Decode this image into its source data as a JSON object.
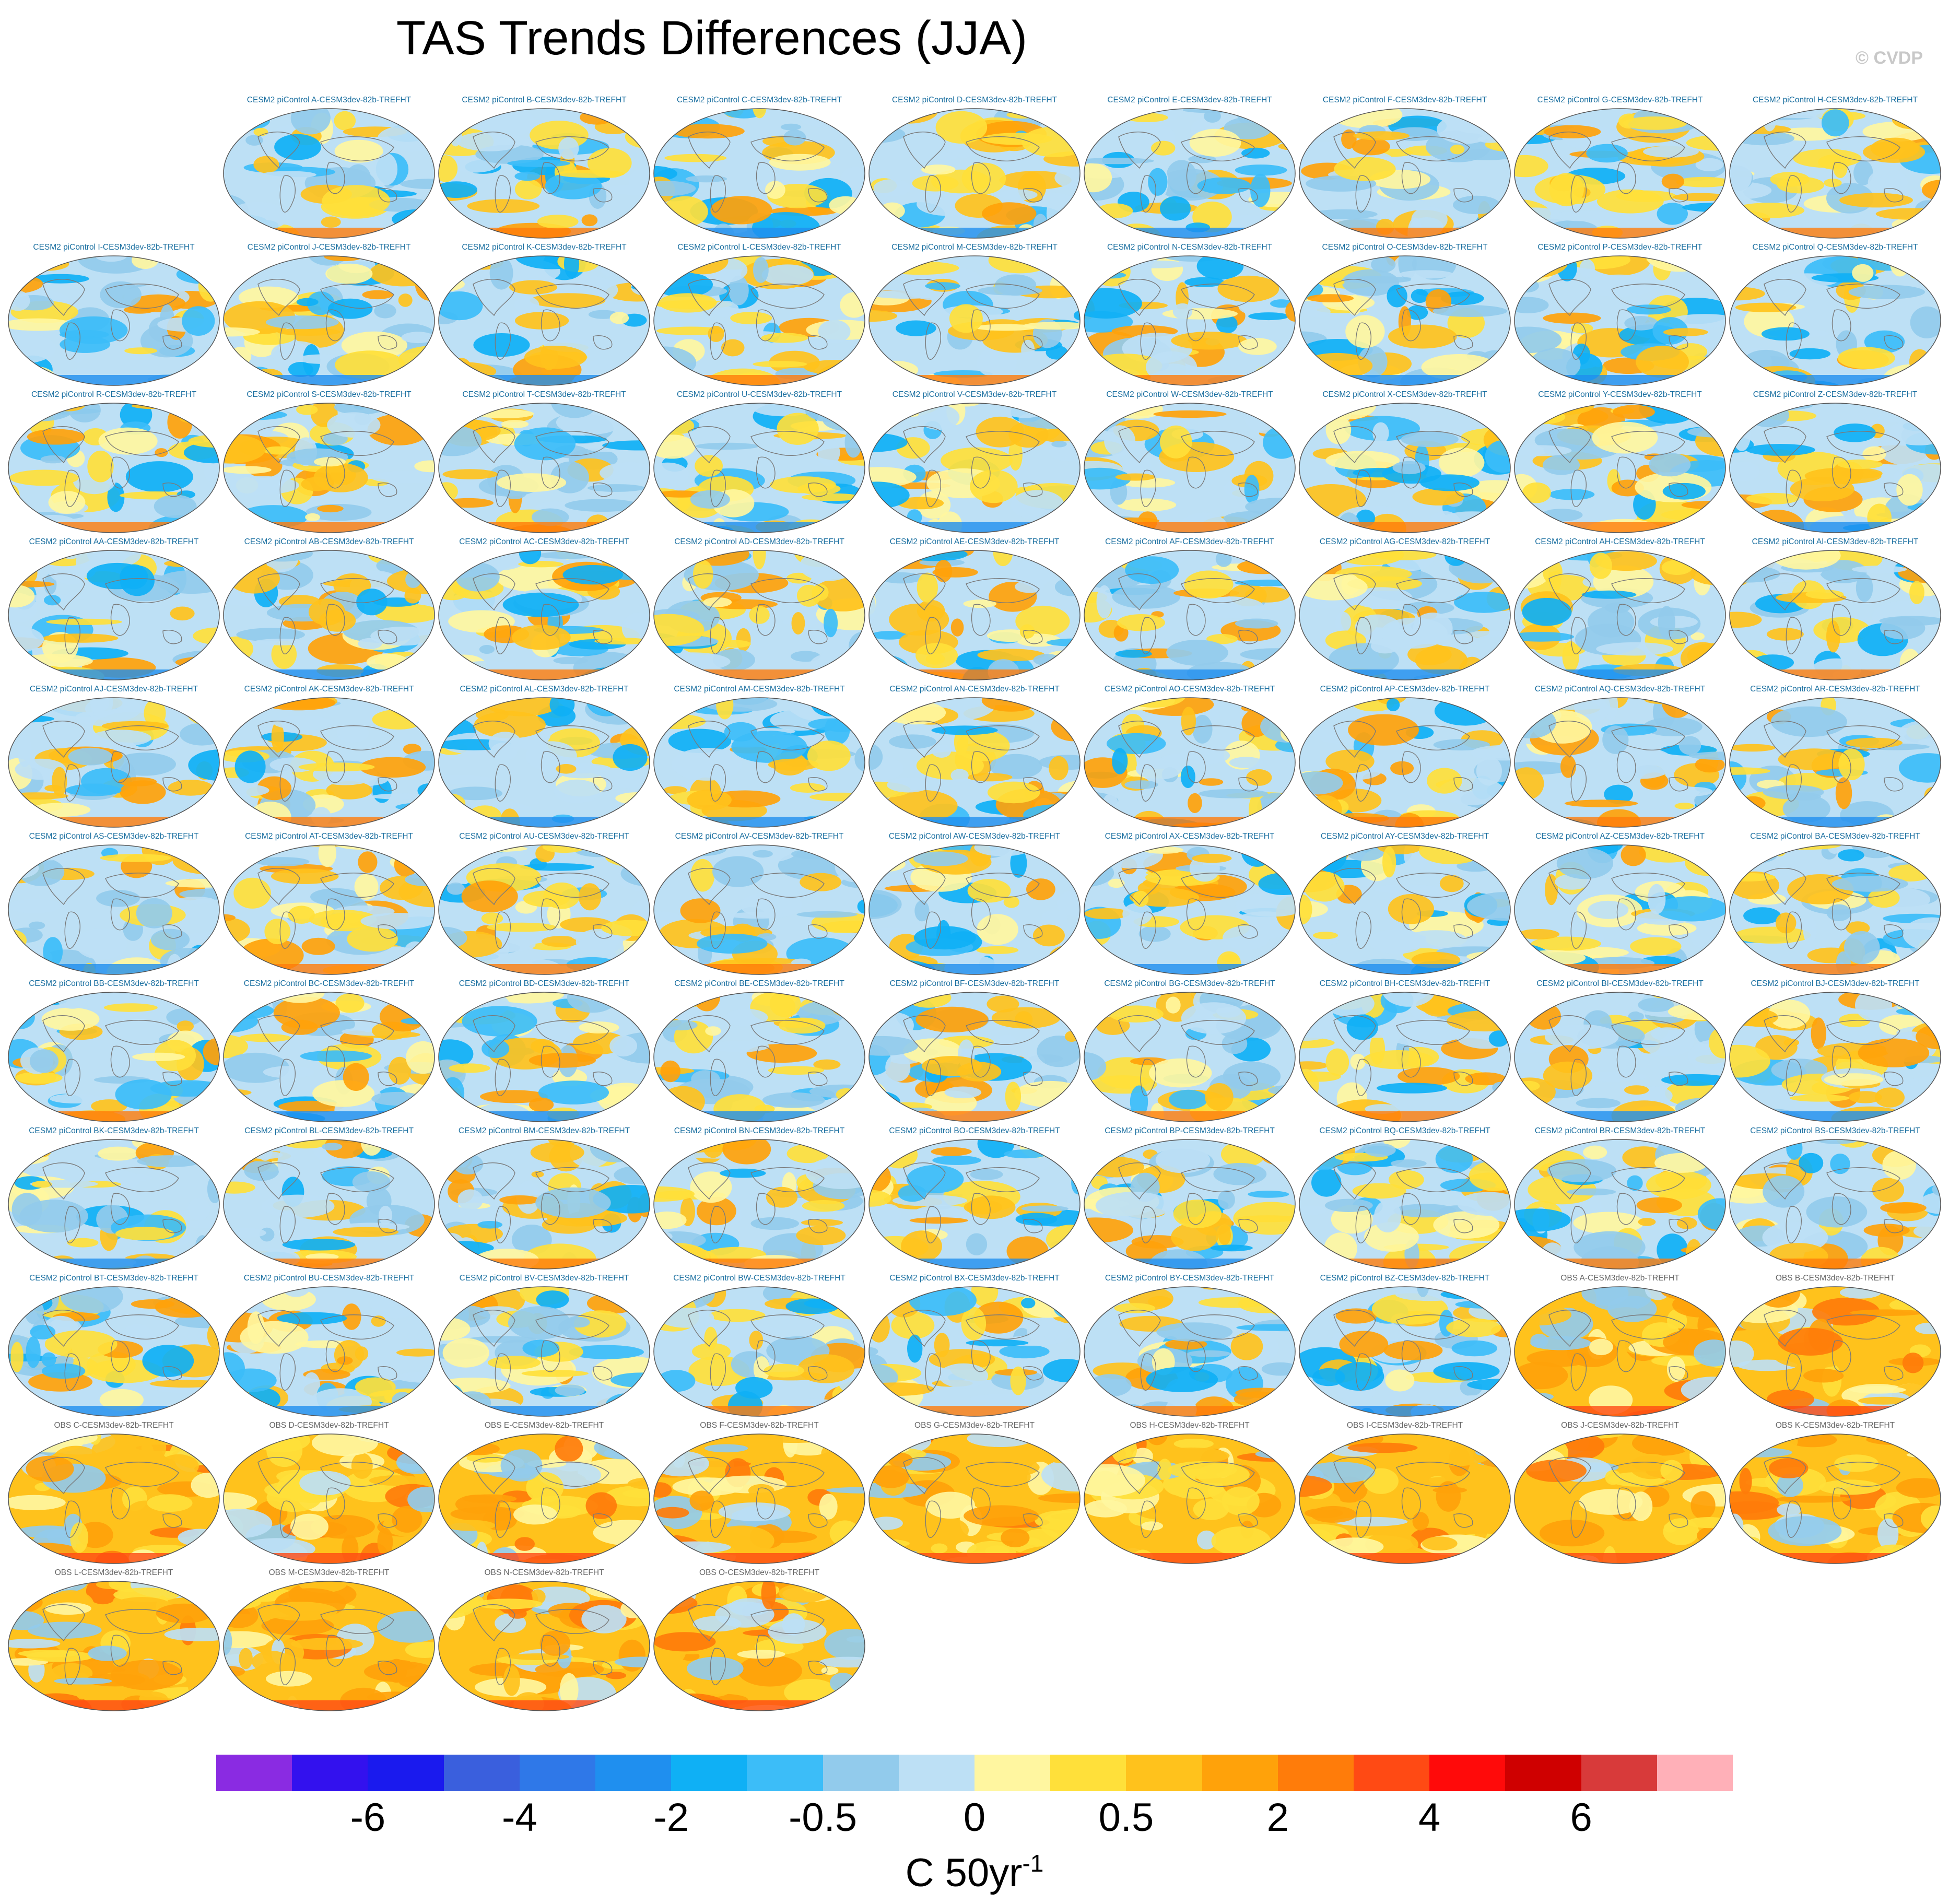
{
  "title": "TAS Trends Differences (JJA)",
  "watermark": "© CVDP",
  "panel_prefix_model": "CESM2 piControl ",
  "panel_prefix_obs": "OBS ",
  "panel_suffix": "-CESM3dev-82b-TREFHT",
  "chart_data": {
    "type": "heatmap",
    "description_kind": "grid of global trend-difference maps",
    "title": "TAS Trends Differences (JJA)",
    "panels": [
      {
        "source": "CESM2 piControl",
        "member": "A",
        "label": "CESM2 piControl A-CESM3dev-82b-TREFHT"
      },
      {
        "source": "CESM2 piControl",
        "member": "B",
        "label": "CESM2 piControl B-CESM3dev-82b-TREFHT"
      },
      {
        "source": "CESM2 piControl",
        "member": "C",
        "label": "CESM2 piControl C-CESM3dev-82b-TREFHT"
      },
      {
        "source": "CESM2 piControl",
        "member": "D",
        "label": "CESM2 piControl D-CESM3dev-82b-TREFHT"
      },
      {
        "source": "CESM2 piControl",
        "member": "E",
        "label": "CESM2 piControl E-CESM3dev-82b-TREFHT"
      },
      {
        "source": "CESM2 piControl",
        "member": "F",
        "label": "CESM2 piControl F-CESM3dev-82b-TREFHT"
      },
      {
        "source": "CESM2 piControl",
        "member": "G",
        "label": "CESM2 piControl G-CESM3dev-82b-TREFHT"
      },
      {
        "source": "CESM2 piControl",
        "member": "H",
        "label": "CESM2 piControl H-CESM3dev-82b-TREFHT"
      },
      {
        "source": "CESM2 piControl",
        "member": "I",
        "label": "CESM2 piControl I-CESM3dev-82b-TREFHT"
      },
      {
        "source": "CESM2 piControl",
        "member": "J",
        "label": "CESM2 piControl J-CESM3dev-82b-TREFHT"
      },
      {
        "source": "CESM2 piControl",
        "member": "K",
        "label": "CESM2 piControl K-CESM3dev-82b-TREFHT"
      },
      {
        "source": "CESM2 piControl",
        "member": "L",
        "label": "CESM2 piControl L-CESM3dev-82b-TREFHT"
      },
      {
        "source": "CESM2 piControl",
        "member": "M",
        "label": "CESM2 piControl M-CESM3dev-82b-TREFHT"
      },
      {
        "source": "CESM2 piControl",
        "member": "N",
        "label": "CESM2 piControl N-CESM3dev-82b-TREFHT"
      },
      {
        "source": "CESM2 piControl",
        "member": "O",
        "label": "CESM2 piControl O-CESM3dev-82b-TREFHT"
      },
      {
        "source": "CESM2 piControl",
        "member": "P",
        "label": "CESM2 piControl P-CESM3dev-82b-TREFHT"
      },
      {
        "source": "CESM2 piControl",
        "member": "Q",
        "label": "CESM2 piControl Q-CESM3dev-82b-TREFHT"
      },
      {
        "source": "CESM2 piControl",
        "member": "R",
        "label": "CESM2 piControl R-CESM3dev-82b-TREFHT"
      },
      {
        "source": "CESM2 piControl",
        "member": "S",
        "label": "CESM2 piControl S-CESM3dev-82b-TREFHT"
      },
      {
        "source": "CESM2 piControl",
        "member": "T",
        "label": "CESM2 piControl T-CESM3dev-82b-TREFHT"
      },
      {
        "source": "CESM2 piControl",
        "member": "U",
        "label": "CESM2 piControl U-CESM3dev-82b-TREFHT"
      },
      {
        "source": "CESM2 piControl",
        "member": "V",
        "label": "CESM2 piControl V-CESM3dev-82b-TREFHT"
      },
      {
        "source": "CESM2 piControl",
        "member": "W",
        "label": "CESM2 piControl W-CESM3dev-82b-TREFHT"
      },
      {
        "source": "CESM2 piControl",
        "member": "X",
        "label": "CESM2 piControl X-CESM3dev-82b-TREFHT"
      },
      {
        "source": "CESM2 piControl",
        "member": "Y",
        "label": "CESM2 piControl Y-CESM3dev-82b-TREFHT"
      },
      {
        "source": "CESM2 piControl",
        "member": "Z",
        "label": "CESM2 piControl Z-CESM3dev-82b-TREFHT"
      },
      {
        "source": "CESM2 piControl",
        "member": "AA",
        "label": "CESM2 piControl AA-CESM3dev-82b-TREFHT"
      },
      {
        "source": "CESM2 piControl",
        "member": "AB",
        "label": "CESM2 piControl AB-CESM3dev-82b-TREFHT"
      },
      {
        "source": "CESM2 piControl",
        "member": "AC",
        "label": "CESM2 piControl AC-CESM3dev-82b-TREFHT"
      },
      {
        "source": "CESM2 piControl",
        "member": "AD",
        "label": "CESM2 piControl AD-CESM3dev-82b-TREFHT"
      },
      {
        "source": "CESM2 piControl",
        "member": "AE",
        "label": "CESM2 piControl AE-CESM3dev-82b-TREFHT"
      },
      {
        "source": "CESM2 piControl",
        "member": "AF",
        "label": "CESM2 piControl AF-CESM3dev-82b-TREFHT"
      },
      {
        "source": "CESM2 piControl",
        "member": "AG",
        "label": "CESM2 piControl AG-CESM3dev-82b-TREFHT"
      },
      {
        "source": "CESM2 piControl",
        "member": "AH",
        "label": "CESM2 piControl AH-CESM3dev-82b-TREFHT"
      },
      {
        "source": "CESM2 piControl",
        "member": "AI",
        "label": "CESM2 piControl AI-CESM3dev-82b-TREFHT"
      },
      {
        "source": "CESM2 piControl",
        "member": "AJ",
        "label": "CESM2 piControl AJ-CESM3dev-82b-TREFHT"
      },
      {
        "source": "CESM2 piControl",
        "member": "AK",
        "label": "CESM2 piControl AK-CESM3dev-82b-TREFHT"
      },
      {
        "source": "CESM2 piControl",
        "member": "AL",
        "label": "CESM2 piControl AL-CESM3dev-82b-TREFHT"
      },
      {
        "source": "CESM2 piControl",
        "member": "AM",
        "label": "CESM2 piControl AM-CESM3dev-82b-TREFHT"
      },
      {
        "source": "CESM2 piControl",
        "member": "AN",
        "label": "CESM2 piControl AN-CESM3dev-82b-TREFHT"
      },
      {
        "source": "CESM2 piControl",
        "member": "AO",
        "label": "CESM2 piControl AO-CESM3dev-82b-TREFHT"
      },
      {
        "source": "CESM2 piControl",
        "member": "AP",
        "label": "CESM2 piControl AP-CESM3dev-82b-TREFHT"
      },
      {
        "source": "CESM2 piControl",
        "member": "AQ",
        "label": "CESM2 piControl AQ-CESM3dev-82b-TREFHT"
      },
      {
        "source": "CESM2 piControl",
        "member": "AR",
        "label": "CESM2 piControl AR-CESM3dev-82b-TREFHT"
      },
      {
        "source": "CESM2 piControl",
        "member": "AS",
        "label": "CESM2 piControl AS-CESM3dev-82b-TREFHT"
      },
      {
        "source": "CESM2 piControl",
        "member": "AT",
        "label": "CESM2 piControl AT-CESM3dev-82b-TREFHT"
      },
      {
        "source": "CESM2 piControl",
        "member": "AU",
        "label": "CESM2 piControl AU-CESM3dev-82b-TREFHT"
      },
      {
        "source": "CESM2 piControl",
        "member": "AV",
        "label": "CESM2 piControl AV-CESM3dev-82b-TREFHT"
      },
      {
        "source": "CESM2 piControl",
        "member": "AW",
        "label": "CESM2 piControl AW-CESM3dev-82b-TREFHT"
      },
      {
        "source": "CESM2 piControl",
        "member": "AX",
        "label": "CESM2 piControl AX-CESM3dev-82b-TREFHT"
      },
      {
        "source": "CESM2 piControl",
        "member": "AY",
        "label": "CESM2 piControl AY-CESM3dev-82b-TREFHT"
      },
      {
        "source": "CESM2 piControl",
        "member": "AZ",
        "label": "CESM2 piControl AZ-CESM3dev-82b-TREFHT"
      },
      {
        "source": "CESM2 piControl",
        "member": "BA",
        "label": "CESM2 piControl BA-CESM3dev-82b-TREFHT"
      },
      {
        "source": "CESM2 piControl",
        "member": "BB",
        "label": "CESM2 piControl BB-CESM3dev-82b-TREFHT"
      },
      {
        "source": "CESM2 piControl",
        "member": "BC",
        "label": "CESM2 piControl BC-CESM3dev-82b-TREFHT"
      },
      {
        "source": "CESM2 piControl",
        "member": "BD",
        "label": "CESM2 piControl BD-CESM3dev-82b-TREFHT"
      },
      {
        "source": "CESM2 piControl",
        "member": "BE",
        "label": "CESM2 piControl BE-CESM3dev-82b-TREFHT"
      },
      {
        "source": "CESM2 piControl",
        "member": "BF",
        "label": "CESM2 piControl BF-CESM3dev-82b-TREFHT"
      },
      {
        "source": "CESM2 piControl",
        "member": "BG",
        "label": "CESM2 piControl BG-CESM3dev-82b-TREFHT"
      },
      {
        "source": "CESM2 piControl",
        "member": "BH",
        "label": "CESM2 piControl BH-CESM3dev-82b-TREFHT"
      },
      {
        "source": "CESM2 piControl",
        "member": "BI",
        "label": "CESM2 piControl BI-CESM3dev-82b-TREFHT"
      },
      {
        "source": "CESM2 piControl",
        "member": "BJ",
        "label": "CESM2 piControl BJ-CESM3dev-82b-TREFHT"
      },
      {
        "source": "CESM2 piControl",
        "member": "BK",
        "label": "CESM2 piControl BK-CESM3dev-82b-TREFHT"
      },
      {
        "source": "CESM2 piControl",
        "member": "BL",
        "label": "CESM2 piControl BL-CESM3dev-82b-TREFHT"
      },
      {
        "source": "CESM2 piControl",
        "member": "BM",
        "label": "CESM2 piControl BM-CESM3dev-82b-TREFHT"
      },
      {
        "source": "CESM2 piControl",
        "member": "BN",
        "label": "CESM2 piControl BN-CESM3dev-82b-TREFHT"
      },
      {
        "source": "CESM2 piControl",
        "member": "BO",
        "label": "CESM2 piControl BO-CESM3dev-82b-TREFHT"
      },
      {
        "source": "CESM2 piControl",
        "member": "BP",
        "label": "CESM2 piControl BP-CESM3dev-82b-TREFHT"
      },
      {
        "source": "CESM2 piControl",
        "member": "BQ",
        "label": "CESM2 piControl BQ-CESM3dev-82b-TREFHT"
      },
      {
        "source": "CESM2 piControl",
        "member": "BR",
        "label": "CESM2 piControl BR-CESM3dev-82b-TREFHT"
      },
      {
        "source": "CESM2 piControl",
        "member": "BS",
        "label": "CESM2 piControl BS-CESM3dev-82b-TREFHT"
      },
      {
        "source": "CESM2 piControl",
        "member": "BT",
        "label": "CESM2 piControl BT-CESM3dev-82b-TREFHT"
      },
      {
        "source": "CESM2 piControl",
        "member": "BU",
        "label": "CESM2 piControl BU-CESM3dev-82b-TREFHT"
      },
      {
        "source": "CESM2 piControl",
        "member": "BV",
        "label": "CESM2 piControl BV-CESM3dev-82b-TREFHT"
      },
      {
        "source": "CESM2 piControl",
        "member": "BW",
        "label": "CESM2 piControl BW-CESM3dev-82b-TREFHT"
      },
      {
        "source": "CESM2 piControl",
        "member": "BX",
        "label": "CESM2 piControl BX-CESM3dev-82b-TREFHT"
      },
      {
        "source": "CESM2 piControl",
        "member": "BY",
        "label": "CESM2 piControl BY-CESM3dev-82b-TREFHT"
      },
      {
        "source": "CESM2 piControl",
        "member": "BZ",
        "label": "CESM2 piControl BZ-CESM3dev-82b-TREFHT"
      },
      {
        "source": "OBS",
        "member": "A",
        "label": "OBS A-CESM3dev-82b-TREFHT"
      },
      {
        "source": "OBS",
        "member": "B",
        "label": "OBS B-CESM3dev-82b-TREFHT"
      },
      {
        "source": "OBS",
        "member": "C",
        "label": "OBS C-CESM3dev-82b-TREFHT"
      },
      {
        "source": "OBS",
        "member": "D",
        "label": "OBS D-CESM3dev-82b-TREFHT"
      },
      {
        "source": "OBS",
        "member": "E",
        "label": "OBS E-CESM3dev-82b-TREFHT"
      },
      {
        "source": "OBS",
        "member": "F",
        "label": "OBS F-CESM3dev-82b-TREFHT"
      },
      {
        "source": "OBS",
        "member": "G",
        "label": "OBS G-CESM3dev-82b-TREFHT"
      },
      {
        "source": "OBS",
        "member": "H",
        "label": "OBS H-CESM3dev-82b-TREFHT"
      },
      {
        "source": "OBS",
        "member": "I",
        "label": "OBS I-CESM3dev-82b-TREFHT"
      },
      {
        "source": "OBS",
        "member": "J",
        "label": "OBS J-CESM3dev-82b-TREFHT"
      },
      {
        "source": "OBS",
        "member": "K",
        "label": "OBS K-CESM3dev-82b-TREFHT"
      },
      {
        "source": "OBS",
        "member": "L",
        "label": "OBS L-CESM3dev-82b-TREFHT"
      },
      {
        "source": "OBS",
        "member": "M",
        "label": "OBS M-CESM3dev-82b-TREFHT"
      },
      {
        "source": "OBS",
        "member": "N",
        "label": "OBS N-CESM3dev-82b-TREFHT"
      },
      {
        "source": "OBS",
        "member": "O",
        "label": "OBS O-CESM3dev-82b-TREFHT"
      }
    ],
    "colorbar": {
      "colors": [
        "#8a2be2",
        "#3311ee",
        "#1a1aee",
        "#3a5fdd",
        "#2f78e8",
        "#1f8fef",
        "#0fb0f5",
        "#3cbdf8",
        "#92cbec",
        "#bde0f5",
        "#fff6a0",
        "#ffe03a",
        "#ffc21c",
        "#ffa20a",
        "#ff7c0a",
        "#ff4a14",
        "#ff0a0a",
        "#cf0000",
        "#d83a3a",
        "#ffb0b8"
      ],
      "tick_labels": [
        "-6",
        "-4",
        "-2",
        "-0.5",
        "0",
        "0.5",
        "2",
        "4",
        "6"
      ],
      "units_label": "C 50yr",
      "units_exponent": "-1"
    }
  }
}
